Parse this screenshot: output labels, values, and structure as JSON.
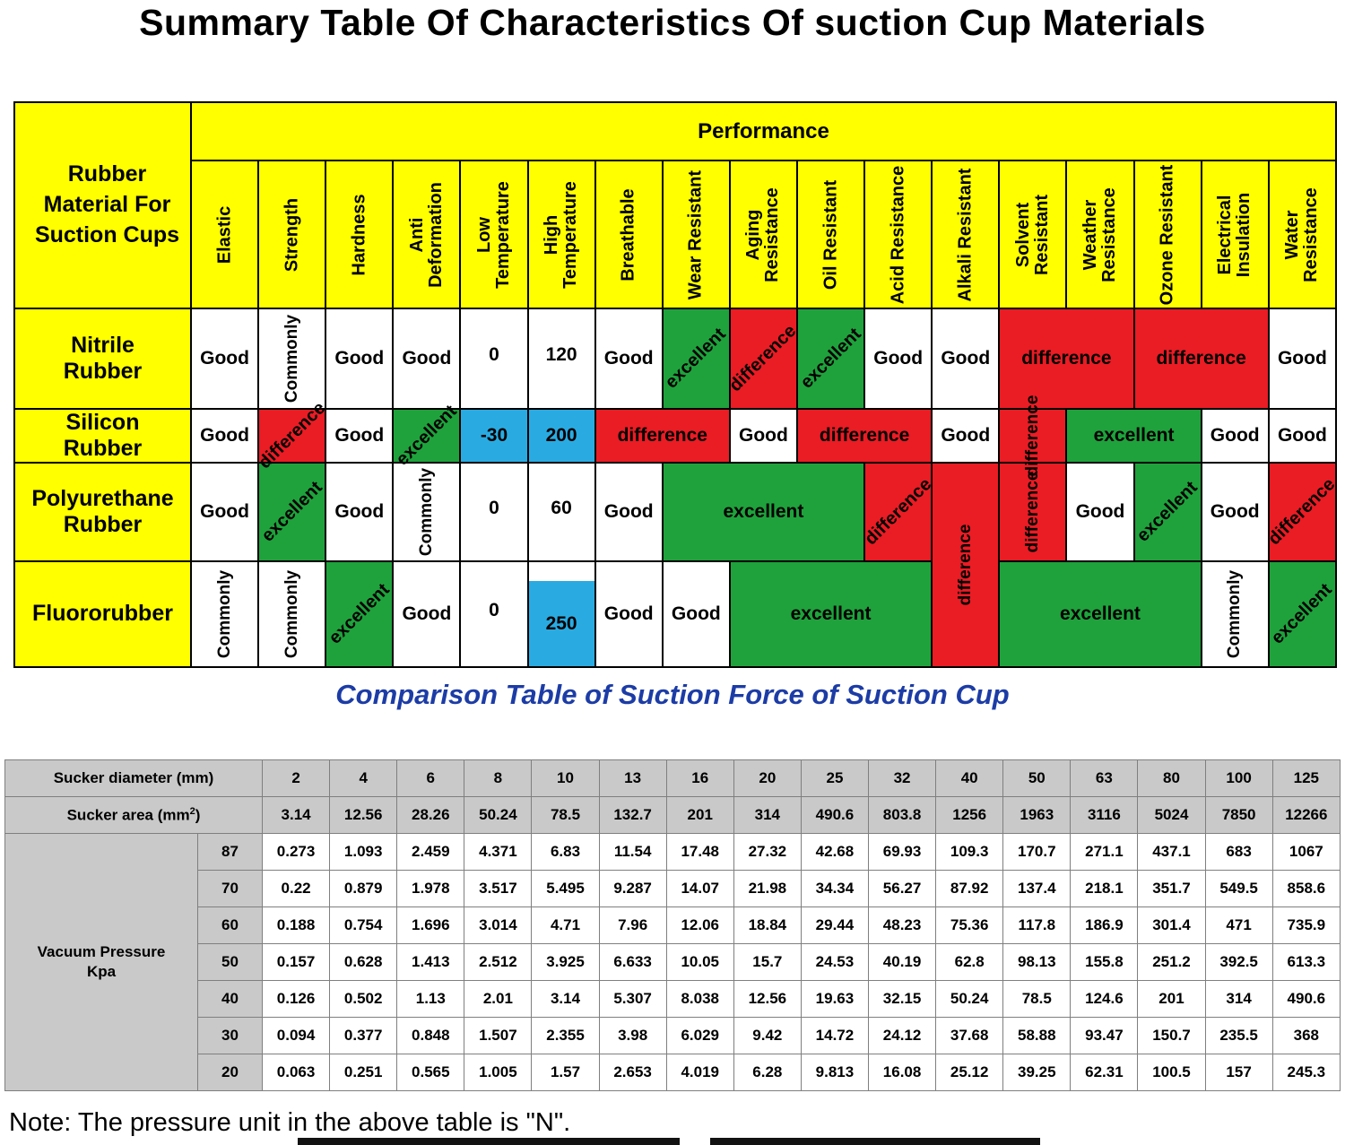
{
  "page": {
    "title": "Summary Table Of Characteristics Of suction Cup Materials",
    "subtitle": "Comparison Table of Suction Force of Suction Cup",
    "note": "Note: The pressure unit in the above table is \"N\"."
  },
  "colors": {
    "header_yellow": "#ffff00",
    "excellent_green": "#1fa23c",
    "difference_red": "#ea1c24",
    "temperature_blue": "#29abe2",
    "table2_gray": "#c9c9c9",
    "subtitle_blue": "#1c3ca6"
  },
  "materials_table": {
    "corner_label": "Rubber\nMaterial  For\nSuction Cups",
    "group_header": "Performance",
    "columns": [
      "Elastic",
      "Strength",
      "Hardness",
      "Anti Deformation",
      "Low Temperature",
      "High Temperature",
      "Breathable",
      "Wear Resistant",
      "Aging Resistance",
      "Oil Resistant",
      "Acid Resistance",
      "Alkali Resistant",
      "Solvent Resistant",
      "Weather Resistance",
      "Ozone Resistant",
      "Electrical Insulation",
      "Water Resistance"
    ],
    "rows": [
      {
        "material": "Nitrile\nRubber",
        "cells": [
          {
            "t": "Good"
          },
          {
            "t": "Commonly",
            "rot": "v"
          },
          {
            "t": "Good"
          },
          {
            "t": "Good"
          },
          {
            "t": "0",
            "va": "b"
          },
          {
            "t": "120",
            "va": "b"
          },
          {
            "t": "Good"
          },
          {
            "t": "excellent",
            "bg": "g",
            "rot": "d"
          },
          {
            "t": "difference",
            "bg": "r",
            "rot": "d"
          },
          {
            "t": "excellent",
            "bg": "g",
            "rot": "d"
          },
          {
            "t": "Good"
          },
          {
            "t": "Good"
          },
          {
            "t": "difference",
            "bg": "r",
            "cs": 2
          },
          {
            "t": "difference",
            "bg": "r",
            "cs": 2
          },
          {
            "t": "Good"
          }
        ]
      },
      {
        "material": "Silicon\nRubber",
        "cells": [
          {
            "t": "Good"
          },
          {
            "t": "difference",
            "bg": "r",
            "rot": "d"
          },
          {
            "t": "Good"
          },
          {
            "t": "excellent",
            "bg": "g",
            "rot": "d"
          },
          {
            "t": "-30",
            "bg": "b"
          },
          {
            "t": "200",
            "bg": "b"
          },
          {
            "t": "difference",
            "bg": "r",
            "cs": 2
          },
          {
            "t": "Good"
          },
          {
            "t": "difference",
            "bg": "r",
            "cs": 2
          },
          {
            "t": "Good"
          },
          {
            "t": "difference",
            "bg": "r",
            "rot": "v"
          },
          {
            "t": "excellent",
            "bg": "g",
            "cs": 2
          },
          {
            "t": "Good"
          },
          {
            "t": "Good"
          }
        ]
      },
      {
        "material": "Polyurethane\nRubber",
        "cells": [
          {
            "t": "Good"
          },
          {
            "t": "excellent",
            "bg": "g",
            "rot": "d"
          },
          {
            "t": "Good"
          },
          {
            "t": "Commonly",
            "rot": "v"
          },
          {
            "t": "0",
            "va": "b"
          },
          {
            "t": "60",
            "va": "b"
          },
          {
            "t": "Good"
          },
          {
            "t": "excellent",
            "bg": "g",
            "cs": 3
          },
          {
            "t": "difference",
            "bg": "r",
            "rot": "d"
          },
          {
            "t": "difference",
            "bg": "r",
            "rot": "v",
            "rs": 2
          },
          {
            "t": "difference",
            "bg": "r",
            "rot": "v"
          },
          {
            "t": "Good"
          },
          {
            "t": "excellent",
            "bg": "g",
            "rot": "d"
          },
          {
            "t": "Good"
          },
          {
            "t": "difference",
            "bg": "r",
            "rot": "d"
          }
        ]
      },
      {
        "material": "Fluororubber",
        "cells": [
          {
            "t": "Commonly",
            "rot": "v"
          },
          {
            "t": "Commonly",
            "rot": "v"
          },
          {
            "t": "excellent",
            "bg": "g",
            "rot": "d"
          },
          {
            "t": "Good"
          },
          {
            "t": "0",
            "va": "b"
          },
          {
            "t": "250",
            "bg": "b2"
          },
          {
            "t": "Good"
          },
          {
            "t": "Good"
          },
          {
            "t": "excellent",
            "bg": "g",
            "cs": 3
          },
          {
            "t": "excellent",
            "bg": "g",
            "cs": 3
          },
          {
            "t": "Commonly",
            "rot": "v"
          },
          {
            "t": "excellent",
            "bg": "g",
            "rot": "d"
          }
        ]
      }
    ]
  },
  "force_table": {
    "diameter_label": "Sucker diameter (mm)",
    "area_label_pre": "Sucker area (mm",
    "area_label_sup": "2",
    "area_label_post": ")",
    "pressure_label": "Vacuum Pressure\nKpa",
    "diameters": [
      "2",
      "4",
      "6",
      "8",
      "10",
      "13",
      "16",
      "20",
      "25",
      "32",
      "40",
      "50",
      "63",
      "80",
      "100",
      "125"
    ],
    "areas": [
      "3.14",
      "12.56",
      "28.26",
      "50.24",
      "78.5",
      "132.7",
      "201",
      "314",
      "490.6",
      "803.8",
      "1256",
      "1963",
      "3116",
      "5024",
      "7850",
      "12266"
    ],
    "rows": [
      {
        "pressure": "87",
        "values": [
          "0.273",
          "1.093",
          "2.459",
          "4.371",
          "6.83",
          "11.54",
          "17.48",
          "27.32",
          "42.68",
          "69.93",
          "109.3",
          "170.7",
          "271.1",
          "437.1",
          "683",
          "1067"
        ]
      },
      {
        "pressure": "70",
        "values": [
          "0.22",
          "0.879",
          "1.978",
          "3.517",
          "5.495",
          "9.287",
          "14.07",
          "21.98",
          "34.34",
          "56.27",
          "87.92",
          "137.4",
          "218.1",
          "351.7",
          "549.5",
          "858.6"
        ]
      },
      {
        "pressure": "60",
        "values": [
          "0.188",
          "0.754",
          "1.696",
          "3.014",
          "4.71",
          "7.96",
          "12.06",
          "18.84",
          "29.44",
          "48.23",
          "75.36",
          "117.8",
          "186.9",
          "301.4",
          "471",
          "735.9"
        ]
      },
      {
        "pressure": "50",
        "values": [
          "0.157",
          "0.628",
          "1.413",
          "2.512",
          "3.925",
          "6.633",
          "10.05",
          "15.7",
          "24.53",
          "40.19",
          "62.8",
          "98.13",
          "155.8",
          "251.2",
          "392.5",
          "613.3"
        ]
      },
      {
        "pressure": "40",
        "values": [
          "0.126",
          "0.502",
          "1.13",
          "2.01",
          "3.14",
          "5.307",
          "8.038",
          "12.56",
          "19.63",
          "32.15",
          "50.24",
          "78.5",
          "124.6",
          "201",
          "314",
          "490.6"
        ]
      },
      {
        "pressure": "30",
        "values": [
          "0.094",
          "0.377",
          "0.848",
          "1.507",
          "2.355",
          "3.98",
          "6.029",
          "9.42",
          "14.72",
          "24.12",
          "37.68",
          "58.88",
          "93.47",
          "150.7",
          "235.5",
          "368"
        ]
      },
      {
        "pressure": "20",
        "values": [
          "0.063",
          "0.251",
          "0.565",
          "1.005",
          "1.57",
          "2.653",
          "4.019",
          "6.28",
          "9.813",
          "16.08",
          "25.12",
          "39.25",
          "62.31",
          "100.5",
          "157",
          "245.3"
        ]
      }
    ]
  }
}
